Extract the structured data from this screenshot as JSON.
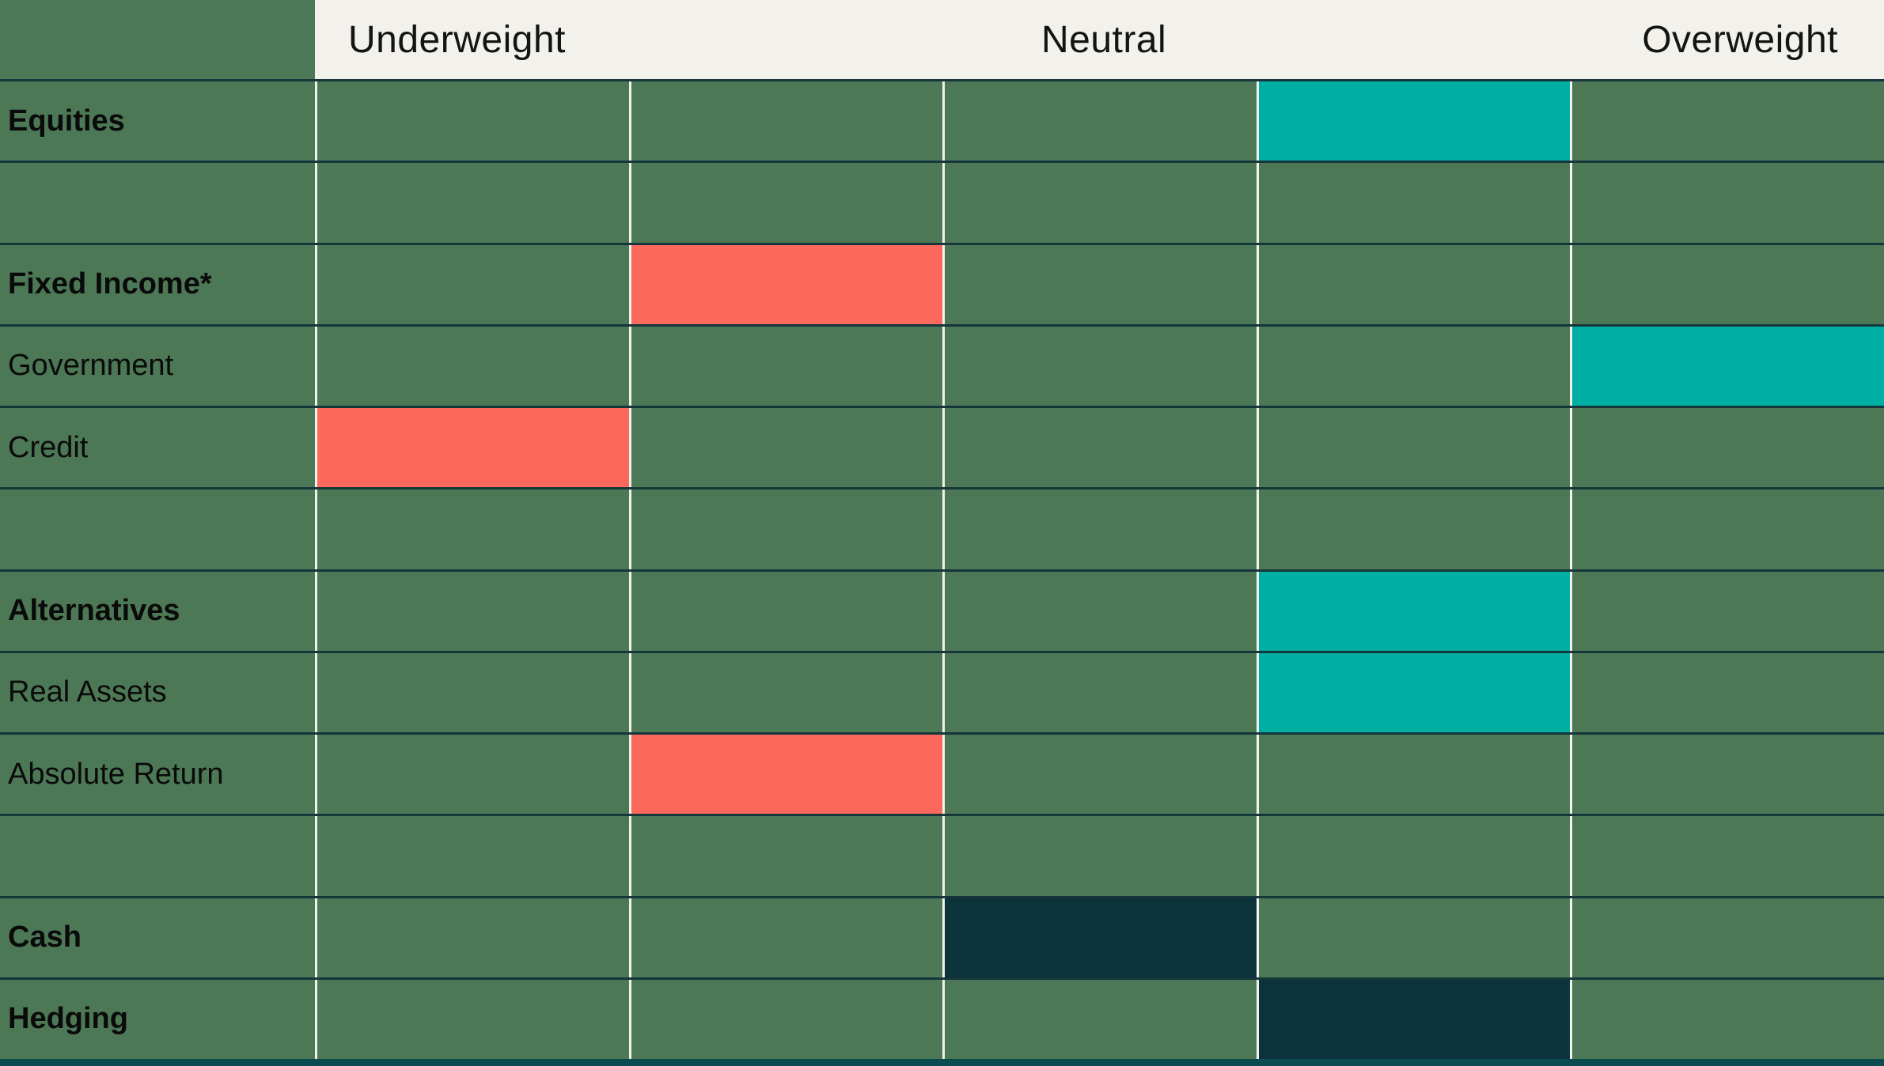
{
  "colors": {
    "background": "#4C7856",
    "header_background": "#F2F1EC",
    "header_text": "#141414",
    "label_text": "#0A0A0A",
    "highlight_teal": "#00AFA4",
    "highlight_coral": "#FC685C",
    "highlight_dark": "#0C323C",
    "grid_vertical": "#F2F1EC",
    "grid_horizontal": "#16363B",
    "bottom_border": "#0A4C4F"
  },
  "header": {
    "scale_labels": [
      "Underweight",
      "Neutral",
      "Overweight"
    ]
  },
  "chart_data": {
    "type": "heatmap",
    "columns": 5,
    "scale_labels": [
      "Underweight",
      "Neutral",
      "Overweight"
    ],
    "rows": [
      {
        "label": "Equities",
        "bold": true,
        "highlight_column": 4,
        "highlight_color": "teal"
      },
      {
        "label": "",
        "bold": false,
        "highlight_column": 0,
        "highlight_color": ""
      },
      {
        "label": "Fixed Income*",
        "bold": true,
        "highlight_column": 2,
        "highlight_color": "coral"
      },
      {
        "label": "Government",
        "bold": false,
        "highlight_column": 5,
        "highlight_color": "teal"
      },
      {
        "label": "Credit",
        "bold": false,
        "highlight_column": 1,
        "highlight_color": "coral"
      },
      {
        "label": "",
        "bold": false,
        "highlight_column": 0,
        "highlight_color": ""
      },
      {
        "label": "Alternatives",
        "bold": true,
        "highlight_column": 4,
        "highlight_color": "teal"
      },
      {
        "label": "Real Assets",
        "bold": false,
        "highlight_column": 4,
        "highlight_color": "teal"
      },
      {
        "label": "Absolute Return",
        "bold": false,
        "highlight_column": 2,
        "highlight_color": "coral"
      },
      {
        "label": "",
        "bold": false,
        "highlight_column": 0,
        "highlight_color": ""
      },
      {
        "label": "Cash",
        "bold": true,
        "highlight_column": 3,
        "highlight_color": "dark"
      },
      {
        "label": "Hedging",
        "bold": true,
        "highlight_column": 4,
        "highlight_color": "dark"
      }
    ]
  }
}
